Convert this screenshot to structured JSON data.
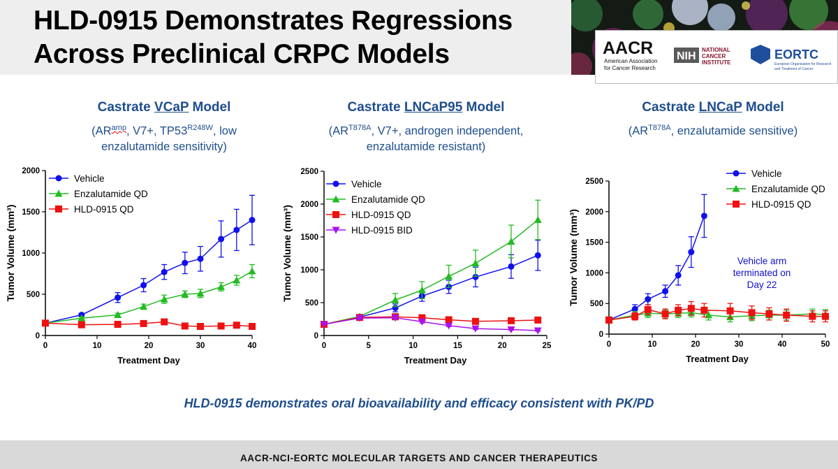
{
  "title_line1": "HLD-0915 Demonstrates Regressions",
  "title_line2": "Across Preclinical CRPC Models",
  "logos": {
    "aacr": "AACR",
    "aacr_sub1": "American Association",
    "aacr_sub2": "for Cancer Research",
    "nih": "NIH",
    "nci1": "NATIONAL",
    "nci2": "CANCER",
    "nci3": "INSTITUTE",
    "eortc": "EORTC",
    "eortc_sub1": "European Organisation for Research",
    "eortc_sub2": "and Treatment of Cancer"
  },
  "panels": [
    {
      "title_pre": "Castrate ",
      "title_ul": "VCaP",
      "title_post": " Model",
      "sub1_a": "(AR",
      "sub1_sup1": "amp",
      "sub1_b": ", V7+, TP53",
      "sub1_sup2": "R248W",
      "sub1_c": ", low",
      "sub2": "enzalutamide sensitivity)"
    },
    {
      "title_pre": "Castrate ",
      "title_ul": "LNCaP95",
      "title_post": " Model",
      "sub1_a": "(AR",
      "sub1_sup1": "T878A",
      "sub1_b": ", V7+, androgen independent,",
      "sub2": "enzalutamide resistant)"
    },
    {
      "title_pre": "Castrate ",
      "title_ul": "LNCaP",
      "title_post": " Model",
      "sub1_a": "(AR",
      "sub1_sup1": "T878A",
      "sub1_b": ", enzalutamide sensitive)"
    }
  ],
  "caption": "HLD-0915 demonstrates oral bioavailability and efficacy consistent with PK/PD",
  "footer": "AACR-NCI-EORTC MOLECULAR TARGETS AND CANCER THERAPEUTICS",
  "colors": {
    "Vehicle": "#1010ee",
    "Enzalutamide QD": "#22bb22",
    "HLD-0915 QD": "#ee1111",
    "HLD-0915 BID": "#aa11ee"
  },
  "chart_data": [
    {
      "type": "line",
      "xlabel": "Treatment Day",
      "ylabel": "Tumor Volume (mm³)",
      "xlim": [
        0,
        40
      ],
      "ylim": [
        0,
        2000
      ],
      "xticks": [
        0,
        10,
        20,
        30,
        40
      ],
      "yticks": [
        0,
        500,
        1000,
        1500,
        2000
      ],
      "legend": "top-left",
      "series": [
        {
          "name": "Vehicle",
          "marker": "circle",
          "x": [
            0,
            7,
            14,
            19,
            23,
            27,
            30,
            34,
            37,
            40
          ],
          "y": [
            150,
            250,
            460,
            610,
            770,
            880,
            930,
            1170,
            1280,
            1400
          ],
          "err": [
            0,
            20,
            60,
            80,
            90,
            130,
            150,
            220,
            250,
            300
          ]
        },
        {
          "name": "Enzalutamide QD",
          "marker": "triangle",
          "x": [
            0,
            7,
            14,
            19,
            23,
            27,
            30,
            34,
            37,
            40
          ],
          "y": [
            150,
            210,
            250,
            350,
            440,
            500,
            510,
            590,
            670,
            780
          ],
          "err": [
            0,
            15,
            20,
            30,
            50,
            40,
            50,
            50,
            60,
            80
          ]
        },
        {
          "name": "HLD-0915 QD",
          "marker": "square",
          "x": [
            0,
            7,
            14,
            19,
            23,
            27,
            30,
            34,
            37,
            40
          ],
          "y": [
            150,
            130,
            135,
            145,
            165,
            115,
            110,
            115,
            125,
            110
          ],
          "err": [
            0,
            10,
            10,
            10,
            15,
            10,
            10,
            10,
            10,
            10
          ]
        }
      ]
    },
    {
      "type": "line",
      "xlabel": "Treatment Day",
      "ylabel": "Tumor Volume (mm³)",
      "xlim": [
        0,
        25
      ],
      "ylim": [
        0,
        2500
      ],
      "xticks": [
        0,
        5,
        10,
        15,
        20,
        25
      ],
      "yticks": [
        0,
        500,
        1000,
        1500,
        2000,
        2500
      ],
      "legend": "top-left",
      "series": [
        {
          "name": "Vehicle",
          "marker": "circle",
          "x": [
            0,
            4,
            8,
            11,
            14,
            17,
            21,
            24
          ],
          "y": [
            170,
            280,
            420,
            600,
            740,
            890,
            1050,
            1220
          ],
          "err": [
            0,
            20,
            60,
            80,
            100,
            150,
            180,
            230
          ]
        },
        {
          "name": "Enzalutamide QD",
          "marker": "triangle",
          "x": [
            0,
            4,
            8,
            11,
            14,
            17,
            21,
            24
          ],
          "y": [
            170,
            290,
            540,
            690,
            900,
            1100,
            1430,
            1760
          ],
          "err": [
            0,
            20,
            100,
            130,
            170,
            200,
            250,
            300
          ]
        },
        {
          "name": "HLD-0915 QD",
          "marker": "square",
          "x": [
            0,
            4,
            8,
            11,
            14,
            17,
            21,
            24
          ],
          "y": [
            170,
            275,
            285,
            270,
            240,
            215,
            225,
            235
          ],
          "err": [
            0,
            20,
            20,
            20,
            20,
            20,
            20,
            20
          ]
        },
        {
          "name": "HLD-0915 BID",
          "marker": "triangle-down",
          "x": [
            0,
            4,
            8,
            11,
            14,
            17,
            21,
            24
          ],
          "y": [
            170,
            265,
            270,
            210,
            150,
            105,
            90,
            75
          ],
          "err": [
            0,
            20,
            20,
            20,
            15,
            15,
            10,
            10
          ]
        }
      ]
    },
    {
      "type": "line",
      "xlabel": "Treatment Day",
      "ylabel": "Tumor Volume (mm³)",
      "xlim": [
        0,
        50
      ],
      "ylim": [
        0,
        2500
      ],
      "xticks": [
        0,
        10,
        20,
        30,
        40,
        50
      ],
      "yticks": [
        0,
        500,
        1000,
        1500,
        2000,
        2500
      ],
      "legend": "top-right",
      "annotation": [
        "Vehicle arm",
        "terminated on",
        "Day 22"
      ],
      "series": [
        {
          "name": "Vehicle",
          "marker": "circle",
          "x": [
            0,
            6,
            9,
            13,
            16,
            19,
            22
          ],
          "y": [
            230,
            410,
            570,
            700,
            960,
            1340,
            1930
          ],
          "err": [
            50,
            70,
            90,
            100,
            160,
            250,
            350
          ]
        },
        {
          "name": "Enzalutamide QD",
          "marker": "triangle",
          "x": [
            0,
            6,
            9,
            13,
            16,
            19,
            23,
            28,
            33,
            37,
            41,
            47,
            50
          ],
          "y": [
            230,
            310,
            340,
            330,
            340,
            350,
            310,
            280,
            300,
            310,
            310,
            330,
            320
          ],
          "err": [
            50,
            60,
            70,
            70,
            70,
            70,
            80,
            80,
            80,
            80,
            80,
            80,
            80
          ]
        },
        {
          "name": "HLD-0915 QD",
          "marker": "square",
          "x": [
            0,
            6,
            9,
            13,
            16,
            19,
            22,
            28,
            33,
            37,
            41,
            47,
            50
          ],
          "y": [
            230,
            290,
            400,
            330,
            390,
            420,
            390,
            380,
            350,
            330,
            310,
            290,
            290
          ],
          "err": [
            50,
            60,
            80,
            80,
            90,
            110,
            110,
            120,
            110,
            100,
            100,
            90,
            90
          ]
        }
      ]
    }
  ]
}
